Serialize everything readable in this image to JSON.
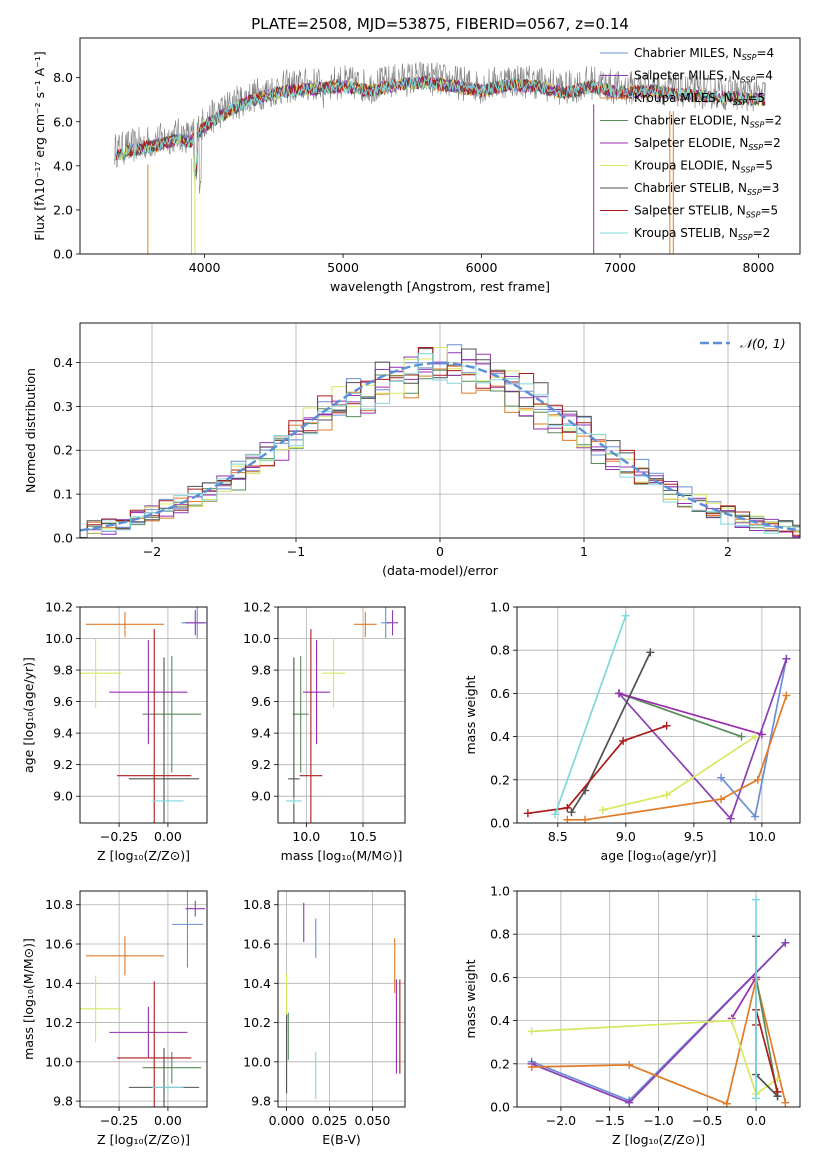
{
  "figure": {
    "title": "PLATE=2508, MJD=53875, FIBERID=0567, z=0.14",
    "series": [
      {
        "name": "Chabrier MILES",
        "nssp": "4",
        "color": "#6b8fd6"
      },
      {
        "name": "Salpeter MILES",
        "nssp": "4",
        "color": "#8b3fb5"
      },
      {
        "name": "Kroupa MILES",
        "nssp": "5",
        "color": "#e07b28"
      },
      {
        "name": "Chabrier ELODIE",
        "nssp": "2",
        "color": "#5a8c5a"
      },
      {
        "name": "Salpeter ELODIE",
        "nssp": "2",
        "color": "#9a2cb0"
      },
      {
        "name": "Kroupa ELODIE",
        "nssp": "5",
        "color": "#d8e860"
      },
      {
        "name": "Chabrier STELIB",
        "nssp": "3",
        "color": "#505050"
      },
      {
        "name": "Salpeter STELIB",
        "nssp": "5",
        "color": "#aa1c1c"
      },
      {
        "name": "Kroupa STELIB",
        "nssp": "2",
        "color": "#80d8dc"
      }
    ],
    "nssp_prefix": "N",
    "nssp_sub": "SSP"
  },
  "chart_data": [
    {
      "id": "spectrum",
      "type": "line",
      "xlabel": "wavelength [Angstrom, rest frame]",
      "ylabel": "Flux [fλ10⁻¹⁷ erg cm⁻² s⁻¹ A⁻¹]",
      "xlim": [
        3100,
        8300
      ],
      "ylim": [
        0,
        9.8
      ],
      "xticks": [
        4000,
        5000,
        6000,
        7000,
        8000
      ],
      "yticks": [
        0,
        2,
        4,
        6,
        8
      ],
      "data_color": "#808080",
      "grid": false,
      "legend": "right",
      "envelope": [
        [
          3350,
          4.7
        ],
        [
          3550,
          5.0
        ],
        [
          3700,
          5.2
        ],
        [
          3800,
          5.4
        ],
        [
          3900,
          5.3
        ],
        [
          4000,
          6.0
        ],
        [
          4100,
          6.4
        ],
        [
          4200,
          6.8
        ],
        [
          4400,
          7.3
        ],
        [
          4600,
          7.6
        ],
        [
          4800,
          7.7
        ],
        [
          5000,
          7.8
        ],
        [
          5200,
          7.6
        ],
        [
          5400,
          7.9
        ],
        [
          5600,
          8.0
        ],
        [
          5800,
          7.8
        ],
        [
          6000,
          7.6
        ],
        [
          6200,
          7.9
        ],
        [
          6400,
          7.8
        ],
        [
          6600,
          7.5
        ],
        [
          6800,
          7.8
        ],
        [
          7000,
          7.5
        ],
        [
          7200,
          7.6
        ],
        [
          7500,
          7.4
        ],
        [
          7800,
          7.3
        ],
        [
          8050,
          7.2
        ]
      ]
    },
    {
      "id": "residuals",
      "type": "histogram",
      "xlabel": "(data-model)/error",
      "ylabel": "Normed distribution",
      "xlim": [
        -2.5,
        2.5
      ],
      "ylim": [
        0,
        0.49
      ],
      "xticks": [
        -2,
        -1,
        0,
        1,
        2
      ],
      "yticks": [
        0.0,
        0.1,
        0.2,
        0.3,
        0.4
      ],
      "grid": true,
      "legend": "top-right",
      "gaussian_label": "𝒩(0, 1)",
      "gaussian_color": "#5b8fd6",
      "bin_width": 0.1
    },
    {
      "id": "age-vs-Z",
      "type": "errorbar",
      "xlabel": "Z [log₁₀(Z/Z⊙)]",
      "ylabel": "age  [log₁₀(age/yr)]",
      "xlim": [
        -0.45,
        0.2
      ],
      "ylim": [
        8.83,
        10.2
      ],
      "xticks": [
        -0.25,
        0.0
      ],
      "xtick_labels": [
        "−0.25",
        "0.00"
      ],
      "yticks": [
        9.0,
        9.2,
        9.4,
        9.6,
        9.8,
        10.0,
        10.2
      ],
      "ytick_labels": [
        "9.0",
        "9.2",
        "9.4",
        "9.6",
        "9.8",
        "10.0",
        "10.2"
      ],
      "grid": true,
      "points": [
        {
          "s": 0,
          "x": 0.15,
          "y": 10.1,
          "xe": 0.08,
          "ye": 0.1
        },
        {
          "s": 1,
          "x": 0.14,
          "y": 10.1,
          "xe": 0.05,
          "ye": 0.08
        },
        {
          "s": 2,
          "x": -0.22,
          "y": 10.09,
          "xe": 0.2,
          "ye": 0.08
        },
        {
          "s": 3,
          "x": 0.02,
          "y": 9.52,
          "xe": 0.15,
          "ye": 0.37
        },
        {
          "s": 4,
          "x": -0.1,
          "y": 9.66,
          "xe": 0.2,
          "ye": 0.33
        },
        {
          "s": 5,
          "x": -0.37,
          "y": 9.78,
          "xe": 0.13,
          "ye": 0.22
        },
        {
          "s": 6,
          "x": -0.02,
          "y": 9.11,
          "xe": 0.18,
          "ye": 0.77
        },
        {
          "s": 7,
          "x": -0.07,
          "y": 9.13,
          "xe": 0.19,
          "ye": 0.93
        },
        {
          "s": 8,
          "x": 0.0,
          "y": 8.97,
          "xe": 0.08,
          "ye": 0.02
        }
      ]
    },
    {
      "id": "age-vs-mass",
      "type": "errorbar",
      "xlabel": "mass [log₁₀(M/M⊙)]",
      "ylabel": "",
      "xlim": [
        9.75,
        10.87
      ],
      "ylim": [
        8.83,
        10.2
      ],
      "xticks": [
        10.0,
        10.5
      ],
      "xtick_labels": [
        "10.0",
        "10.5"
      ],
      "yticks": [
        9.0,
        9.2,
        9.4,
        9.6,
        9.8,
        10.0,
        10.2
      ],
      "ytick_labels": [
        "9.0",
        "9.2",
        "9.4",
        "9.6",
        "9.8",
        "10.0",
        "10.2"
      ],
      "grid": true,
      "points": [
        {
          "s": 0,
          "x": 10.7,
          "y": 10.1,
          "xe": 0.04,
          "ye": 0.1
        },
        {
          "s": 1,
          "x": 10.76,
          "y": 10.1,
          "xe": 0.05,
          "ye": 0.08
        },
        {
          "s": 2,
          "x": 10.52,
          "y": 10.09,
          "xe": 0.1,
          "ye": 0.08
        },
        {
          "s": 3,
          "x": 9.95,
          "y": 9.52,
          "xe": 0.07,
          "ye": 0.37
        },
        {
          "s": 4,
          "x": 10.09,
          "y": 9.66,
          "xe": 0.12,
          "ye": 0.33
        },
        {
          "s": 5,
          "x": 10.24,
          "y": 9.78,
          "xe": 0.1,
          "ye": 0.22
        },
        {
          "s": 6,
          "x": 9.89,
          "y": 9.11,
          "xe": 0.05,
          "ye": 0.77
        },
        {
          "s": 7,
          "x": 10.04,
          "y": 9.13,
          "xe": 0.1,
          "ye": 0.93
        },
        {
          "s": 8,
          "x": 9.89,
          "y": 8.97,
          "xe": 0.07,
          "ye": 0.02
        }
      ]
    },
    {
      "id": "mass-weight-vs-age",
      "type": "line",
      "xlabel": "age  [log₁₀(age/yr)]",
      "ylabel": "mass weight",
      "xlim": [
        8.2,
        10.28
      ],
      "ylim": [
        0,
        1.0
      ],
      "xticks": [
        8.5,
        9.0,
        9.5,
        10.0
      ],
      "xtick_labels": [
        "8.5",
        "9.0",
        "9.5",
        "10.0"
      ],
      "yticks": [
        0.0,
        0.2,
        0.4,
        0.6,
        0.8,
        1.0
      ],
      "ytick_labels": [
        "0.0",
        "0.2",
        "0.4",
        "0.6",
        "0.8",
        "1.0"
      ],
      "grid": true,
      "series": [
        {
          "s": 0,
          "x": [
            9.7,
            9.95,
            10.18
          ],
          "y": [
            0.21,
            0.03,
            0.76
          ]
        },
        {
          "s": 1,
          "x": [
            8.95,
            9.77,
            10.18
          ],
          "y": [
            0.6,
            0.02,
            0.76
          ]
        },
        {
          "s": 2,
          "x": [
            8.57,
            8.7,
            9.7,
            9.97,
            10.18
          ],
          "y": [
            0.015,
            0.015,
            0.11,
            0.2,
            0.59
          ]
        },
        {
          "s": 3,
          "x": [
            8.95,
            9.85
          ],
          "y": [
            0.6,
            0.4
          ]
        },
        {
          "s": 4,
          "x": [
            8.95,
            10.0
          ],
          "y": [
            0.6,
            0.41
          ]
        },
        {
          "s": 5,
          "x": [
            8.83,
            9.3,
            9.95
          ],
          "y": [
            0.06,
            0.13,
            0.4
          ]
        },
        {
          "s": 6,
          "x": [
            8.6,
            8.7,
            9.18
          ],
          "y": [
            0.05,
            0.15,
            0.79
          ]
        },
        {
          "s": 7,
          "x": [
            8.28,
            8.57,
            8.98,
            9.3
          ],
          "y": [
            0.045,
            0.07,
            0.38,
            0.45
          ]
        },
        {
          "s": 8,
          "x": [
            8.48,
            9.0
          ],
          "y": [
            0.04,
            0.96
          ]
        }
      ]
    },
    {
      "id": "mass-vs-Z",
      "type": "errorbar",
      "xlabel": "Z [log₁₀(Z/Z⊙)]",
      "ylabel": "mass [log₁₀(M/M⊙)]",
      "xlim": [
        -0.45,
        0.2
      ],
      "ylim": [
        9.77,
        10.87
      ],
      "xticks": [
        -0.25,
        0.0
      ],
      "xtick_labels": [
        "−0.25",
        "0.00"
      ],
      "yticks": [
        9.8,
        10.0,
        10.2,
        10.4,
        10.6,
        10.8
      ],
      "ytick_labels": [
        "9.8",
        "10.0",
        "10.2",
        "10.4",
        "10.6",
        "10.8"
      ],
      "grid": true,
      "points": [
        {
          "s": 0,
          "x": 0.1,
          "y": 10.7,
          "xe": 0.08,
          "ye": 0.22
        },
        {
          "s": 1,
          "x": 0.14,
          "y": 10.78,
          "xe": 0.05,
          "ye": 0.04
        },
        {
          "s": 2,
          "x": -0.22,
          "y": 10.54,
          "xe": 0.2,
          "ye": 0.1
        },
        {
          "s": 3,
          "x": 0.02,
          "y": 9.97,
          "xe": 0.15,
          "ye": 0.08
        },
        {
          "s": 4,
          "x": -0.1,
          "y": 10.15,
          "xe": 0.2,
          "ye": 0.13
        },
        {
          "s": 5,
          "x": -0.37,
          "y": 10.27,
          "xe": 0.13,
          "ye": 0.17
        },
        {
          "s": 6,
          "x": -0.02,
          "y": 9.87,
          "xe": 0.18,
          "ye": 0.2
        },
        {
          "s": 7,
          "x": -0.07,
          "y": 10.02,
          "xe": 0.19,
          "ye": 0.39
        },
        {
          "s": 8,
          "x": 0.0,
          "y": 9.87,
          "xe": 0.08,
          "ye": 0.02
        }
      ]
    },
    {
      "id": "mass-vs-ebv",
      "type": "errorbar",
      "xlabel": "E(B-V)",
      "ylabel": "",
      "xlim": [
        -0.005,
        0.069
      ],
      "ylim": [
        9.77,
        10.87
      ],
      "xticks": [
        0.0,
        0.025,
        0.05
      ],
      "xtick_labels": [
        "0.000",
        "0.025",
        "0.050"
      ],
      "yticks": [
        9.8,
        10.0,
        10.2,
        10.4,
        10.6,
        10.8
      ],
      "ytick_labels": [
        "9.8",
        "10.0",
        "10.2",
        "10.4",
        "10.6",
        "10.8"
      ],
      "grid": true,
      "points": [
        {
          "s": 0,
          "x": 0.017,
          "y": 10.63,
          "xe": 0.0,
          "ye": 0.1
        },
        {
          "s": 1,
          "x": 0.01,
          "y": 10.71,
          "xe": 0.0,
          "ye": 0.1
        },
        {
          "s": 2,
          "x": 0.063,
          "y": 10.49,
          "xe": 0.0,
          "ye": 0.14
        },
        {
          "s": 3,
          "x": 0.001,
          "y": 10.13,
          "xe": 0.0,
          "ye": 0.12
        },
        {
          "s": 4,
          "x": 0.064,
          "y": 10.18,
          "xe": 0.0,
          "ye": 0.24
        },
        {
          "s": 5,
          "x": 0.0,
          "y": 10.31,
          "xe": 0.0,
          "ye": 0.14
        },
        {
          "s": 6,
          "x": 0.0,
          "y": 10.04,
          "xe": 0.0,
          "ye": 0.2
        },
        {
          "s": 7,
          "x": 0.066,
          "y": 10.18,
          "xe": 0.0,
          "ye": 0.24
        },
        {
          "s": 8,
          "x": 0.017,
          "y": 9.93,
          "xe": 0.0,
          "ye": 0.12
        }
      ]
    },
    {
      "id": "mass-weight-vs-Z",
      "type": "line",
      "xlabel": "Z [log₁₀(Z/Z⊙)]",
      "ylabel": "mass weight",
      "xlim": [
        -2.45,
        0.45
      ],
      "ylim": [
        0,
        1.0
      ],
      "xticks": [
        -2.0,
        -1.5,
        -1.0,
        -0.5,
        0.0
      ],
      "xtick_labels": [
        "−2.0",
        "−1.5",
        "−1.0",
        "−0.5",
        "0.0"
      ],
      "yticks": [
        0.0,
        0.2,
        0.4,
        0.6,
        0.8,
        1.0
      ],
      "ytick_labels": [
        "0.0",
        "0.2",
        "0.4",
        "0.6",
        "0.8",
        "1.0"
      ],
      "grid": true,
      "series": [
        {
          "s": 0,
          "x": [
            -2.3,
            -1.3,
            0.3
          ],
          "y": [
            0.21,
            0.03,
            0.76
          ]
        },
        {
          "s": 1,
          "x": [
            -2.3,
            -1.3,
            0.3
          ],
          "y": [
            0.2,
            0.02,
            0.76
          ]
        },
        {
          "s": 2,
          "x": [
            -2.3,
            -1.3,
            -0.3,
            0.0,
            0.3
          ],
          "y": [
            0.185,
            0.195,
            0.015,
            0.59,
            0.02
          ]
        },
        {
          "s": 3,
          "x": [
            0.0,
            0.22
          ],
          "y": [
            0.6,
            0.05
          ]
        },
        {
          "s": 4,
          "x": [
            -0.25,
            0.0
          ],
          "y": [
            0.41,
            0.6
          ]
        },
        {
          "s": 5,
          "x": [
            -2.3,
            -0.25,
            0.0,
            0.22
          ],
          "y": [
            0.35,
            0.4,
            0.06,
            0.13
          ]
        },
        {
          "s": 6,
          "x": [
            0.0,
            0.0,
            0.22
          ],
          "y": [
            0.79,
            0.15,
            0.05
          ]
        },
        {
          "s": 7,
          "x": [
            0.0,
            0.0,
            0.22
          ],
          "y": [
            0.38,
            0.45,
            0.07
          ]
        },
        {
          "s": 8,
          "x": [
            0.0,
            0.0
          ],
          "y": [
            0.96,
            0.04
          ]
        }
      ]
    }
  ]
}
